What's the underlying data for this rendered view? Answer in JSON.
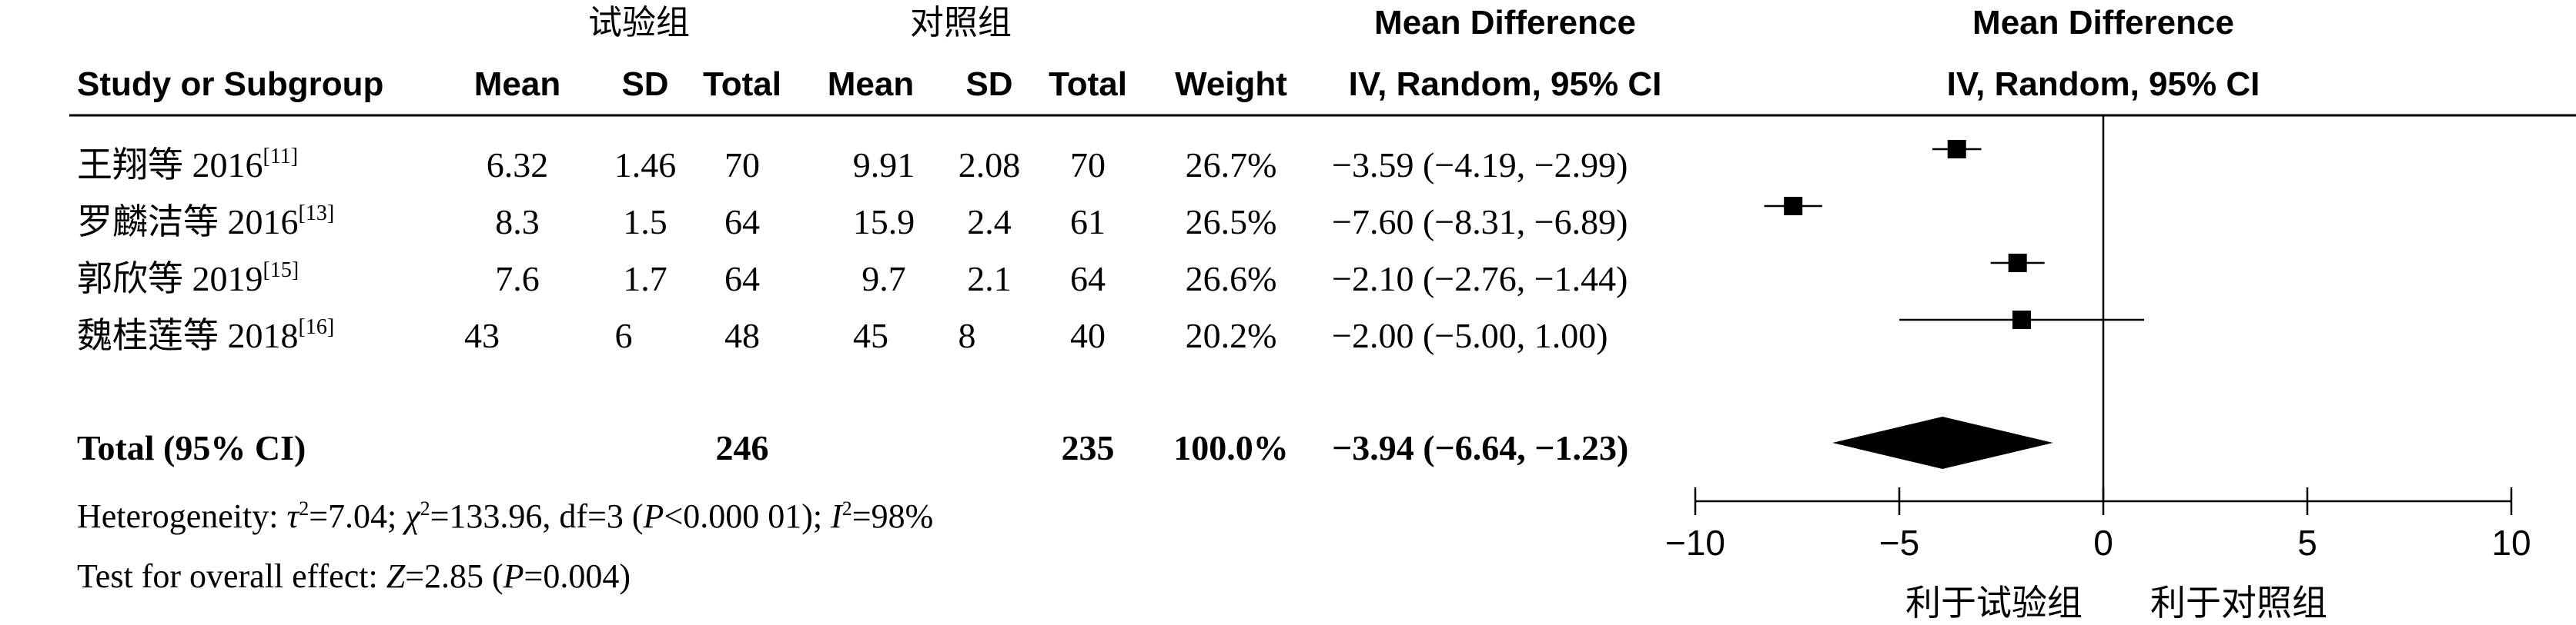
{
  "header": {
    "group_exp": "试验组",
    "group_ctrl": "对照组",
    "md_title": "Mean Difference",
    "md_method": "IV, Random, 95% CI",
    "plot_title": "Mean Difference",
    "plot_method": "IV, Random, 95% CI",
    "columns": {
      "study": "Study or Subgroup",
      "exp_mean": "Mean",
      "exp_sd": "SD",
      "exp_total": "Total",
      "ctrl_mean": "Mean",
      "ctrl_sd": "SD",
      "ctrl_total": "Total",
      "weight": "Weight"
    }
  },
  "studies": [
    {
      "name": "王翔等 2016",
      "ref": "[11]",
      "exp_mean": "6.32",
      "exp_sd": "1.46",
      "exp_total": "70",
      "ctrl_mean": "9.91",
      "ctrl_sd": "2.08",
      "ctrl_total": "70",
      "weight": "26.7%",
      "ci_text": "−3.59 (−4.19, −2.99)"
    },
    {
      "name": "罗麟洁等 2016",
      "ref": "[13]",
      "exp_mean": "8.3",
      "exp_sd": "1.5",
      "exp_total": "64",
      "ctrl_mean": "15.9",
      "ctrl_sd": "2.4",
      "ctrl_total": "61",
      "weight": "26.5%",
      "ci_text": "−7.60 (−8.31, −6.89)"
    },
    {
      "name": "郭欣等 2019",
      "ref": "[15]",
      "exp_mean": "7.6",
      "exp_sd": "1.7",
      "exp_total": "64",
      "ctrl_mean": "9.7",
      "ctrl_sd": "2.1",
      "ctrl_total": "64",
      "weight": "26.6%",
      "ci_text": "−2.10 (−2.76, −1.44)"
    },
    {
      "name": "魏桂莲等 2018",
      "ref": "[16]",
      "exp_mean": "43",
      "exp_sd": "6",
      "exp_total": "48",
      "ctrl_mean": "45",
      "ctrl_sd": "8",
      "ctrl_total": "40",
      "weight": "20.2%",
      "ci_text": "−2.00 (−5.00, 1.00)"
    }
  ],
  "total": {
    "label": "Total (95% CI)",
    "exp_total": "246",
    "ctrl_total": "235",
    "weight": "100.0%",
    "ci_text": "−3.94 (−6.64, −1.23)"
  },
  "heterogeneity": {
    "prefix": "Heterogeneity: ",
    "tau": "τ",
    "tau_val": "=7.04; ",
    "chi": "χ",
    "chi_val": "=133.96, df=3 (",
    "p": "P",
    "p_val": "<0.000 01); ",
    "i": "I",
    "i_val": "=98%",
    "sup": "2"
  },
  "overall": {
    "prefix": "Test for overall effect: ",
    "z": "Z",
    "z_val": "=2.85 (",
    "p": "P",
    "p_val": "=0.004)"
  },
  "axis_labels": {
    "left": "利于试验组",
    "right": "利于对照组"
  },
  "chart_data": {
    "type": "forest",
    "xlim": [
      -10,
      10
    ],
    "xticks": [
      -10,
      -5,
      0,
      5,
      10
    ],
    "tick_labels": [
      "−10",
      "−5",
      "0",
      "5",
      "10"
    ],
    "studies": [
      {
        "md": -3.59,
        "lo": -4.19,
        "hi": -2.99,
        "weight": 26.7
      },
      {
        "md": -7.6,
        "lo": -8.31,
        "hi": -6.89,
        "weight": 26.5
      },
      {
        "md": -2.1,
        "lo": -2.76,
        "hi": -1.44,
        "weight": 26.6
      },
      {
        "md": -2.0,
        "lo": -5.0,
        "hi": 1.0,
        "weight": 20.2
      }
    ],
    "pooled": {
      "md": -3.94,
      "lo": -6.64,
      "hi": -1.23
    },
    "colors": {
      "ink": "#000000",
      "background": "#ffffff"
    }
  }
}
